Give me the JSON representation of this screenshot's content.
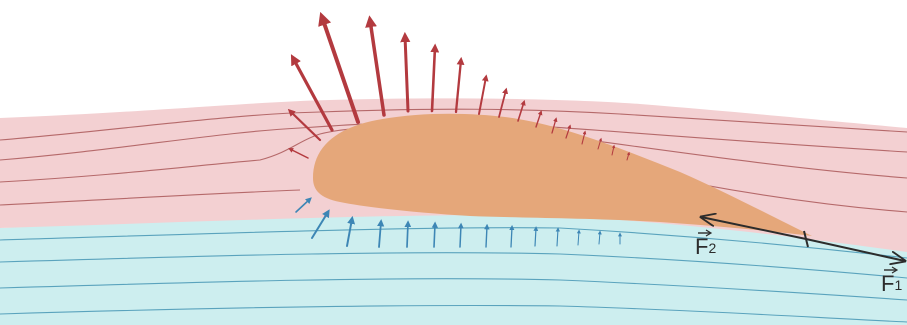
{
  "diagram": {
    "colors": {
      "upper_flow_region": "#f3d0d2",
      "lower_flow_region": "#cdeeef",
      "airfoil": "#e5a77a",
      "suction_arrows": "#b33a3f",
      "pressure_arrows": "#3d86b5",
      "upper_streamlines": "#b5696a",
      "lower_streamlines": "#5aa3bd",
      "force_vectors": "#2c2c2c"
    },
    "labels": {
      "f1": {
        "name": "F",
        "sub": "1"
      },
      "f2": {
        "name": "F",
        "sub": "2"
      }
    }
  }
}
